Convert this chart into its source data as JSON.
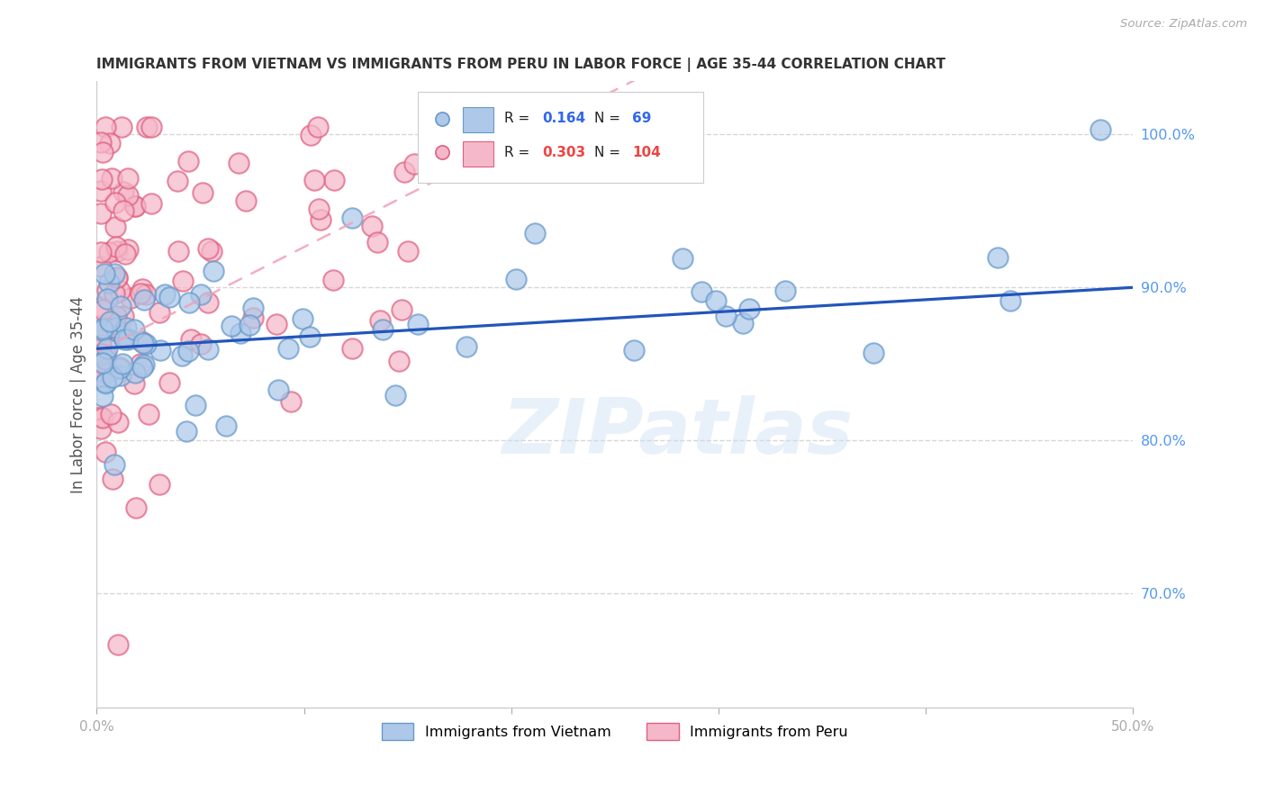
{
  "title": "IMMIGRANTS FROM VIETNAM VS IMMIGRANTS FROM PERU IN LABOR FORCE | AGE 35-44 CORRELATION CHART",
  "source": "Source: ZipAtlas.com",
  "ylabel": "In Labor Force | Age 35-44",
  "xlim": [
    0.0,
    0.5
  ],
  "ylim": [
    0.625,
    1.035
  ],
  "yticks_right": [
    0.7,
    0.8,
    0.9,
    1.0
  ],
  "yticklabels_right": [
    "70.0%",
    "80.0%",
    "90.0%",
    "100.0%"
  ],
  "vietnam_fill": "#adc8e8",
  "vietnam_edge": "#6699cc",
  "peru_fill": "#f5b8ca",
  "peru_edge": "#e06080",
  "trend_vietnam_color": "#2255bb",
  "trend_peru_color": "#e87090",
  "trend_peru_dash_color": "#f0a0b8",
  "R_vietnam": 0.164,
  "N_vietnam": 69,
  "R_peru": 0.303,
  "N_peru": 104,
  "watermark": "ZIPatlas",
  "background_color": "#ffffff",
  "grid_color": "#cccccc",
  "title_color": "#333333",
  "label_color": "#555555",
  "right_axis_color": "#5599ee",
  "source_color": "#aaaaaa"
}
